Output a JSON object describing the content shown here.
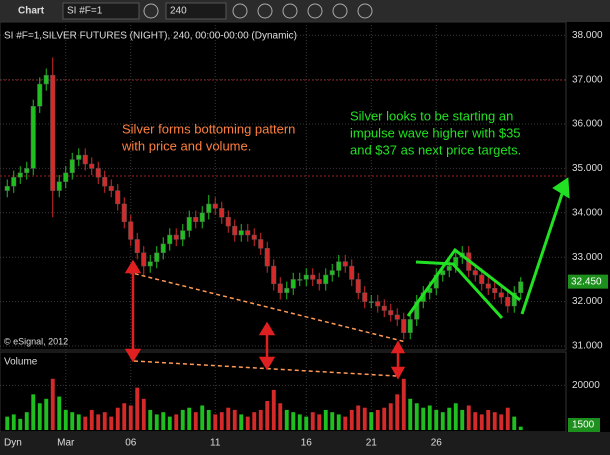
{
  "toolbar": {
    "title": "Chart",
    "symbol": "SI #F=1",
    "interval": "240"
  },
  "status": {
    "mode": "Dyn"
  },
  "chart_data": {
    "type": "candlestick",
    "title": "SI #F=1,SILVER FUTURES (NIGHT), 240, 00:00-00:00 (Dynamic)",
    "watermark": "© eSignal, 2012",
    "volume_title": "Volume",
    "annotations": [
      {
        "lines": [
          "Silver forms bottoming pattern",
          "with price and volume."
        ],
        "color": "#ff7f3f"
      },
      {
        "lines": [
          "Silver looks to be starting an",
          "impulse wave higher with $35",
          "and $37 as next price targets."
        ],
        "color": "#22e022"
      }
    ],
    "categories": [
      null,
      null,
      null,
      null,
      null,
      null,
      null,
      null,
      null,
      "Mar",
      null,
      null,
      null,
      null,
      null,
      null,
      null,
      null,
      null,
      "06",
      null,
      null,
      null,
      null,
      null,
      null,
      null,
      null,
      null,
      null,
      null,
      null,
      "11",
      null,
      null,
      null,
      null,
      null,
      null,
      null,
      null,
      null,
      null,
      null,
      null,
      null,
      "16",
      null,
      null,
      null,
      null,
      null,
      null,
      null,
      null,
      null,
      "21",
      null,
      null,
      null,
      null,
      null,
      null,
      null,
      null,
      null,
      "26",
      null,
      null,
      null,
      null,
      null,
      null,
      null,
      null,
      null,
      null,
      null,
      null,
      null
    ],
    "open": [
      34.5,
      34.6,
      34.8,
      34.9,
      35.0,
      36.4,
      36.9,
      37.1,
      34.5,
      34.7,
      34.9,
      35.2,
      35.3,
      35.1,
      35.0,
      34.8,
      34.6,
      34.5,
      34.2,
      33.8,
      33.4,
      33.1,
      32.8,
      32.9,
      33.1,
      33.3,
      33.5,
      33.4,
      33.6,
      33.9,
      33.8,
      34.0,
      34.2,
      34.1,
      33.9,
      33.7,
      33.5,
      33.6,
      33.5,
      33.4,
      33.2,
      32.8,
      32.4,
      32.2,
      32.3,
      32.5,
      32.5,
      32.6,
      32.5,
      32.4,
      32.6,
      32.7,
      32.9,
      32.8,
      32.5,
      32.2,
      32.0,
      32.0,
      31.9,
      31.8,
      31.7,
      31.6,
      31.3,
      31.6,
      32.0,
      32.2,
      32.3,
      32.6,
      32.7,
      32.8,
      33.0,
      33.1,
      32.7,
      32.6,
      32.4,
      32.3,
      32.2,
      32.1,
      31.9,
      32.2
    ],
    "high": [
      34.75,
      34.95,
      35.05,
      35.15,
      36.55,
      37.05,
      37.25,
      37.5,
      34.85,
      35.05,
      35.35,
      35.45,
      35.45,
      35.25,
      35.15,
      34.95,
      34.75,
      34.65,
      34.35,
      33.95,
      33.55,
      33.25,
      33.05,
      33.25,
      33.45,
      33.65,
      33.65,
      33.75,
      34.05,
      34.05,
      34.15,
      34.4,
      34.35,
      34.25,
      34.05,
      33.85,
      33.75,
      33.75,
      33.65,
      33.55,
      33.35,
      32.95,
      32.55,
      32.45,
      32.65,
      32.65,
      32.75,
      32.75,
      32.65,
      32.75,
      32.85,
      33.05,
      33.05,
      32.95,
      32.65,
      32.35,
      32.15,
      32.15,
      32.05,
      31.95,
      31.85,
      31.75,
      31.75,
      32.15,
      32.35,
      32.45,
      32.75,
      32.85,
      32.95,
      33.15,
      33.25,
      33.25,
      32.85,
      32.75,
      32.55,
      32.45,
      32.35,
      32.25,
      32.35,
      32.55
    ],
    "low": [
      34.35,
      34.45,
      34.65,
      34.75,
      34.85,
      36.25,
      36.75,
      33.9,
      34.35,
      34.55,
      34.75,
      35.05,
      34.95,
      34.85,
      34.65,
      34.45,
      34.35,
      34.05,
      33.65,
      33.25,
      32.95,
      32.6,
      32.65,
      32.75,
      32.95,
      33.15,
      33.25,
      33.25,
      33.45,
      33.65,
      33.65,
      33.85,
      33.95,
      33.75,
      33.55,
      33.35,
      33.35,
      33.35,
      33.25,
      33.05,
      32.65,
      32.25,
      32.05,
      32.05,
      32.15,
      32.35,
      32.35,
      32.35,
      32.25,
      32.25,
      32.45,
      32.55,
      32.65,
      32.35,
      32.05,
      31.85,
      31.85,
      31.75,
      31.65,
      31.55,
      31.45,
      31.15,
      31.15,
      31.45,
      31.85,
      32.05,
      32.15,
      32.45,
      32.55,
      32.65,
      32.85,
      32.55,
      32.45,
      32.25,
      32.15,
      32.05,
      31.95,
      31.75,
      31.75,
      32.05
    ],
    "close": [
      34.6,
      34.8,
      34.9,
      35.0,
      36.4,
      36.9,
      37.1,
      34.5,
      34.7,
      34.9,
      35.2,
      35.3,
      35.1,
      35.0,
      34.8,
      34.6,
      34.5,
      34.2,
      33.8,
      33.4,
      33.1,
      32.8,
      32.9,
      33.1,
      33.3,
      33.5,
      33.4,
      33.6,
      33.9,
      33.8,
      34.0,
      34.2,
      34.1,
      33.9,
      33.7,
      33.5,
      33.6,
      33.5,
      33.4,
      33.2,
      32.8,
      32.4,
      32.2,
      32.3,
      32.5,
      32.5,
      32.6,
      32.5,
      32.4,
      32.6,
      32.7,
      32.9,
      32.8,
      32.5,
      32.2,
      32.0,
      32.0,
      31.9,
      31.8,
      31.7,
      31.6,
      31.3,
      31.6,
      32.0,
      32.2,
      32.3,
      32.6,
      32.7,
      32.8,
      33.0,
      33.1,
      32.7,
      32.6,
      32.4,
      32.3,
      32.2,
      32.1,
      31.9,
      32.2,
      32.45
    ],
    "last_close_label": "32.450",
    "volume": [
      6000,
      7000,
      5000,
      8000,
      16000,
      12000,
      14000,
      23000,
      15000,
      9000,
      8000,
      7000,
      6000,
      9000,
      7000,
      8000,
      6000,
      10000,
      12000,
      11000,
      19000,
      14000,
      9000,
      7000,
      8000,
      6000,
      7000,
      9000,
      10000,
      8000,
      11000,
      9000,
      7000,
      8000,
      10000,
      9000,
      7000,
      6000,
      8000,
      9000,
      13000,
      18000,
      12000,
      9000,
      8000,
      7000,
      6000,
      8000,
      7000,
      9000,
      8000,
      7000,
      6000,
      9000,
      11000,
      10000,
      8000,
      9000,
      10000,
      12000,
      16000,
      23000,
      14000,
      12000,
      10000,
      11000,
      9000,
      8000,
      10000,
      12000,
      9000,
      11000,
      8000,
      7000,
      9000,
      8000,
      7000,
      10000,
      6000,
      1500
    ],
    "ylim": [
      30.91,
      38.23
    ],
    "yticks": [
      {
        "value": 38,
        "label": "38.000"
      },
      {
        "value": 37,
        "label": "37.000"
      },
      {
        "value": 36,
        "label": "36.000"
      },
      {
        "value": 35,
        "label": "35.000"
      },
      {
        "value": 34,
        "label": "34.000"
      },
      {
        "value": 33,
        "label": "33.000"
      },
      {
        "value": 32,
        "label": "32.000"
      },
      {
        "value": 31,
        "label": "31.000"
      }
    ],
    "volume_ylim": [
      0,
      35000
    ],
    "volume_yticks": [
      20000
    ],
    "up_color": "#1fbf1f",
    "down_color": "#d42a2a",
    "grid": true
  }
}
